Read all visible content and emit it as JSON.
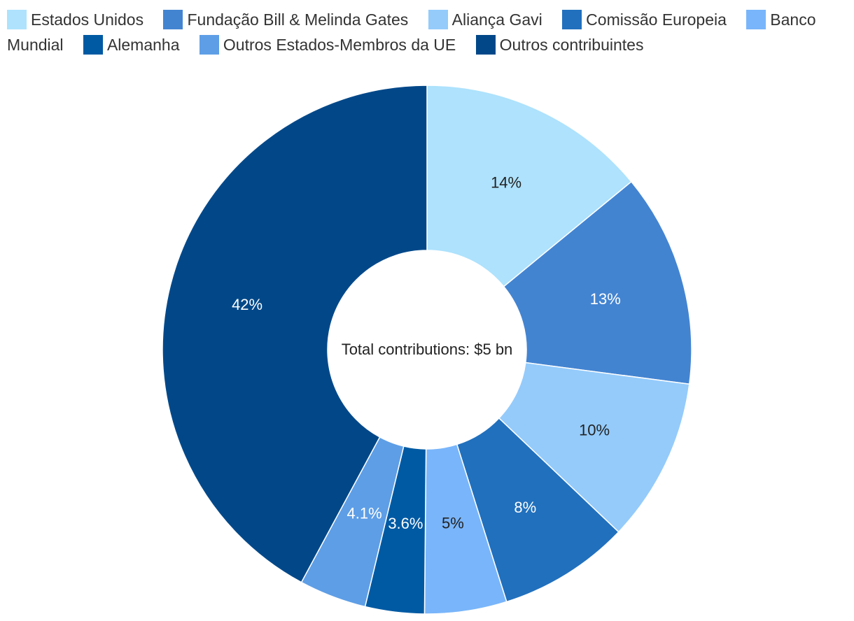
{
  "chart_data": {
    "type": "pie",
    "variant": "donut",
    "center_label": "Total contributions: $5 bn",
    "legend_position": "top",
    "slices": [
      {
        "name": "Estados Unidos",
        "value": 14,
        "label": "14%",
        "color": "#aee2fd",
        "label_color": "#222222"
      },
      {
        "name": "Fundação Bill & Melinda Gates",
        "value": 13,
        "label": "13%",
        "color": "#4384d1",
        "label_color": "#ffffff"
      },
      {
        "name": "Aliança Gavi",
        "value": 10,
        "label": "10%",
        "color": "#94cbfb",
        "label_color": "#222222"
      },
      {
        "name": "Comissão Europeia",
        "value": 8,
        "label": "8%",
        "color": "#2170bd",
        "label_color": "#ffffff"
      },
      {
        "name": "Banco Mundial",
        "value": 5,
        "label": "5%",
        "color": "#79b5fa",
        "label_color": "#222222"
      },
      {
        "name": "Alemanha",
        "value": 3.6,
        "label": "3.6%",
        "color": "#005aa3",
        "label_color": "#ffffff"
      },
      {
        "name": "Outros Estados-Membros da UE",
        "value": 4.1,
        "label": "4.1%",
        "color": "#5e9ee6",
        "label_color": "#ffffff"
      },
      {
        "name": "Outros contribuintes",
        "value": 42,
        "label": "42%",
        "color": "#024889",
        "label_color": "#ffffff"
      }
    ]
  }
}
